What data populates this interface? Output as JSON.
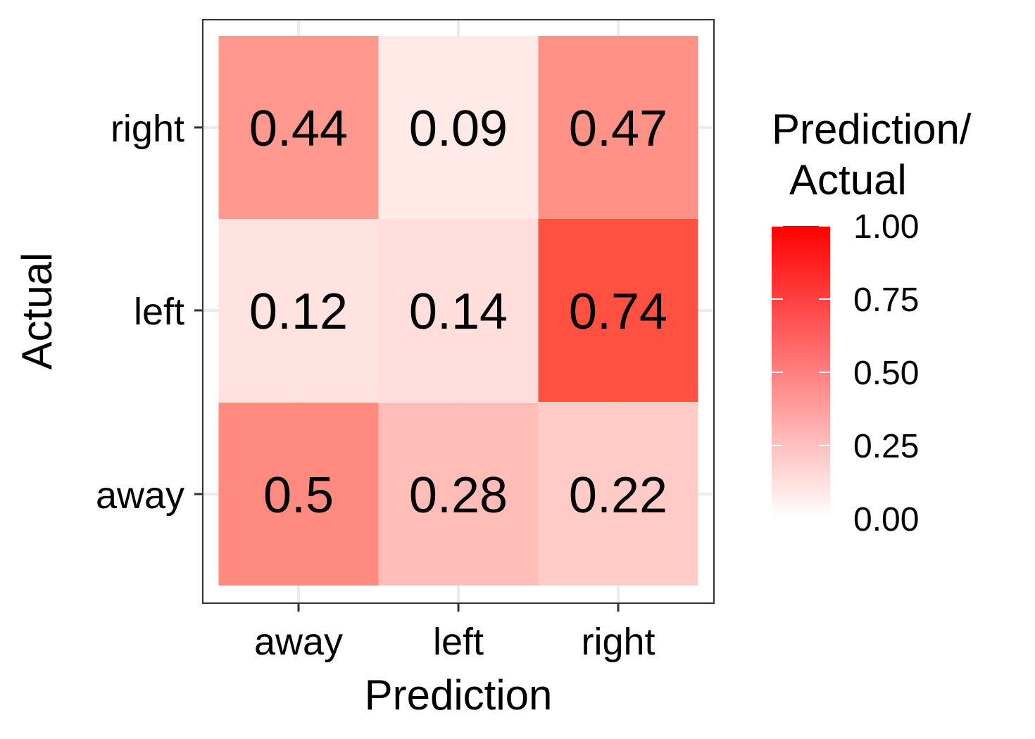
{
  "chart_data": {
    "type": "heatmap",
    "x_categories": [
      "away",
      "left",
      "right"
    ],
    "y_categories": [
      "away",
      "left",
      "right"
    ],
    "xlabel": "Prediction",
    "ylabel": "Actual",
    "values": [
      {
        "actual": "right",
        "prediction": "away",
        "value": 0.44,
        "label": "0.44"
      },
      {
        "actual": "right",
        "prediction": "left",
        "value": 0.09,
        "label": "0.09"
      },
      {
        "actual": "right",
        "prediction": "right",
        "value": 0.47,
        "label": "0.47"
      },
      {
        "actual": "left",
        "prediction": "away",
        "value": 0.12,
        "label": "0.12"
      },
      {
        "actual": "left",
        "prediction": "left",
        "value": 0.14,
        "label": "0.14"
      },
      {
        "actual": "left",
        "prediction": "right",
        "value": 0.74,
        "label": "0.74"
      },
      {
        "actual": "away",
        "prediction": "away",
        "value": 0.5,
        "label": "0.5"
      },
      {
        "actual": "away",
        "prediction": "left",
        "value": 0.28,
        "label": "0.28"
      },
      {
        "actual": "away",
        "prediction": "right",
        "value": 0.22,
        "label": "0.22"
      }
    ],
    "legend": {
      "title_lines": [
        "Prediction/",
        "Actual"
      ],
      "range": [
        0,
        1
      ],
      "ticks": [
        0,
        0.25,
        0.5,
        0.75,
        1
      ],
      "tick_labels": [
        "0.00",
        "0.25",
        "0.50",
        "0.75",
        "1.00"
      ],
      "low_color": "#ffffff",
      "high_color": "#ff0000",
      "placement": "right"
    },
    "grid": true
  }
}
